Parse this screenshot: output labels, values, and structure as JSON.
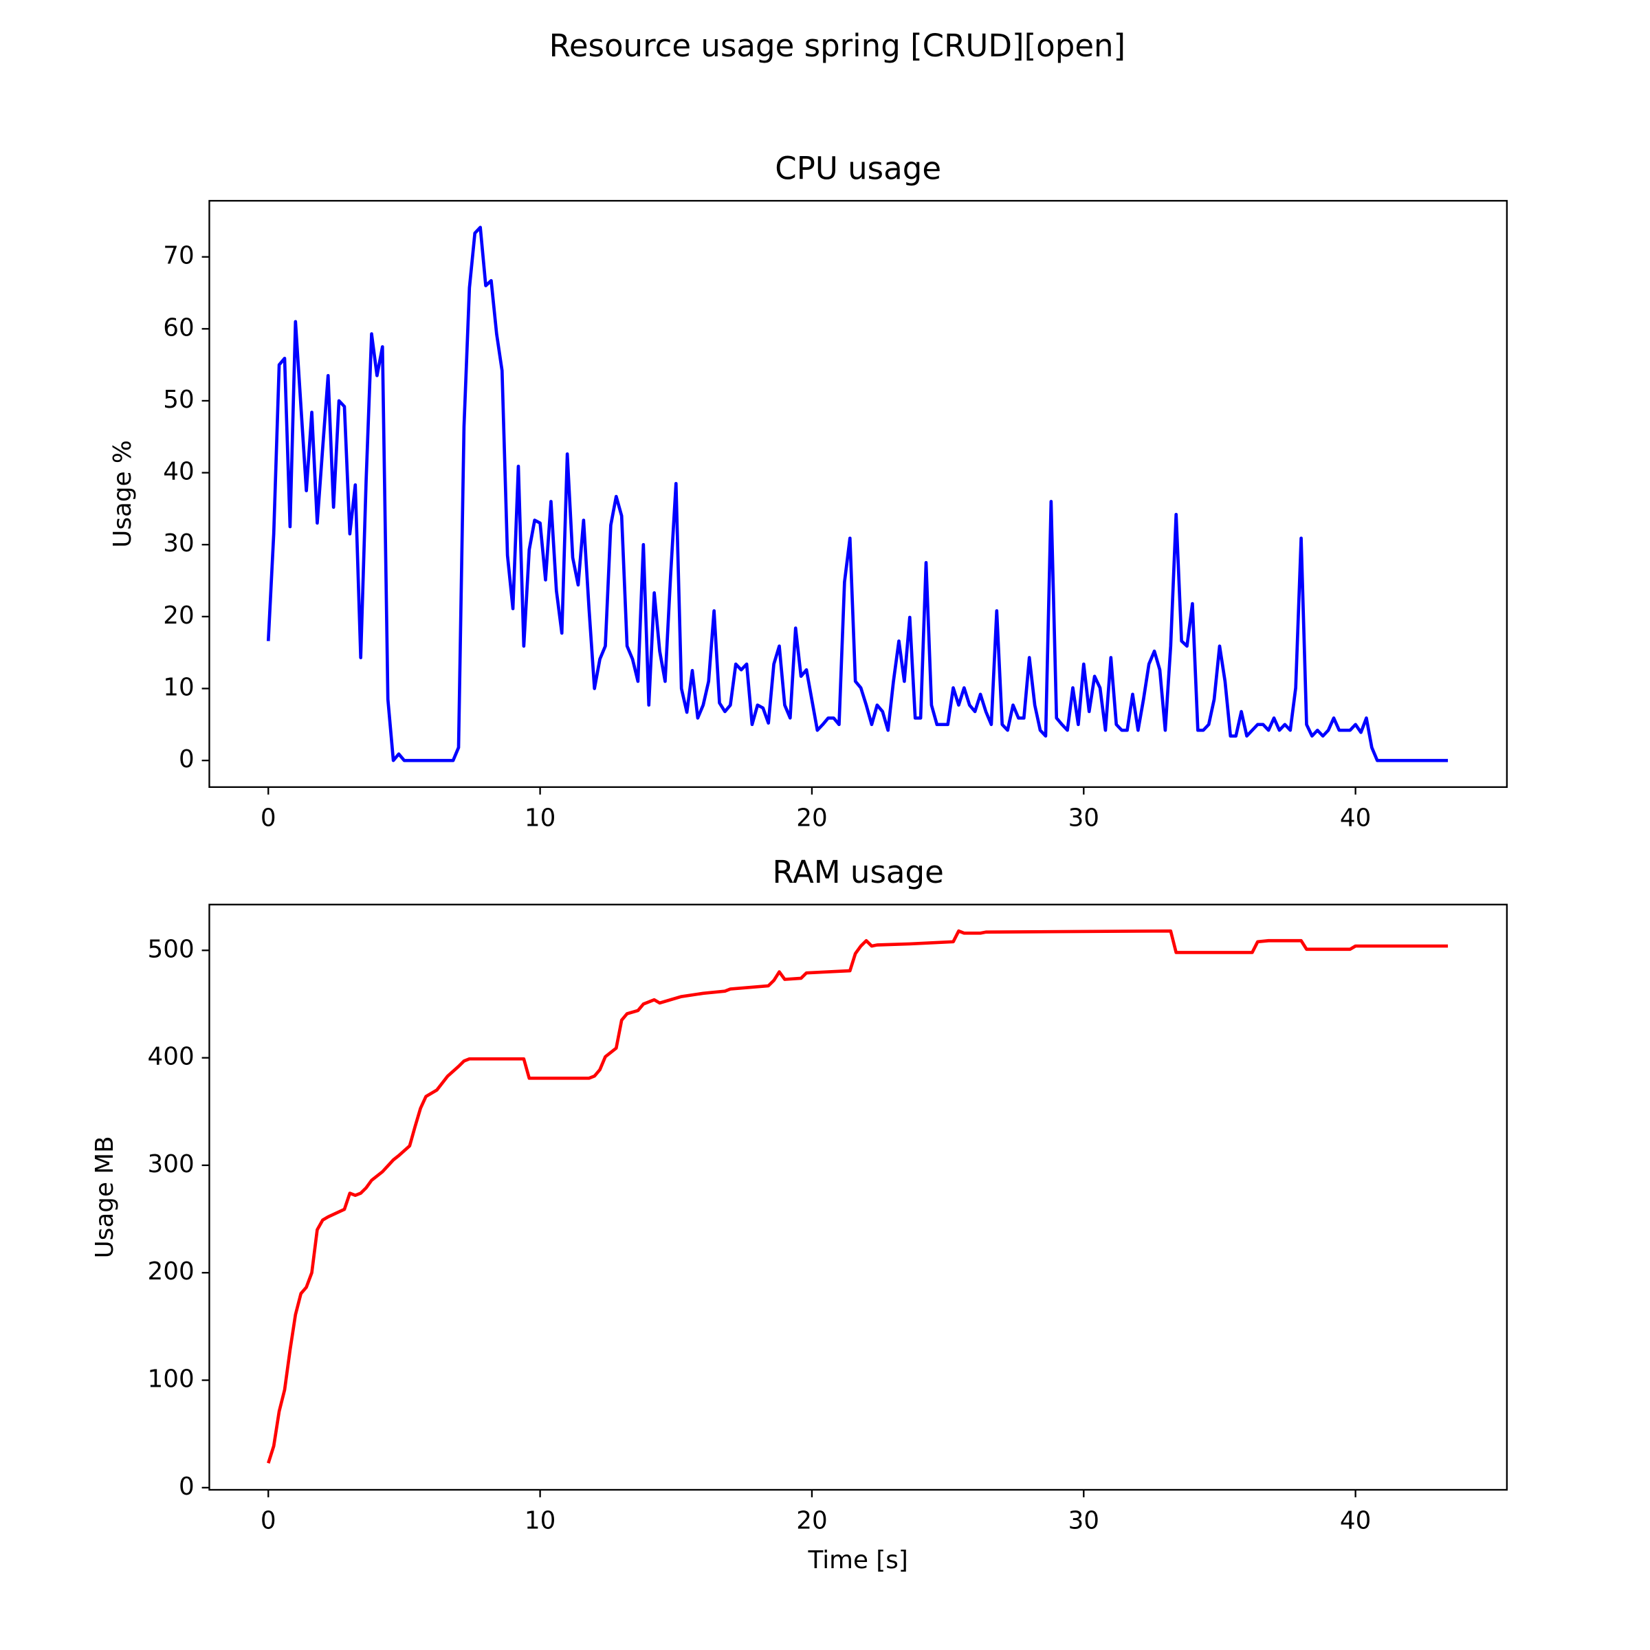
{
  "title": "Resource usage spring [CRUD][open]",
  "chart_data": [
    {
      "type": "line",
      "title": "CPU usage",
      "y_label": "Usage %",
      "x": [
        0,
        0.2,
        0.4,
        0.6,
        0.8,
        1.0,
        1.4,
        1.6,
        1.8,
        2.0,
        2.2,
        2.4,
        2.6,
        2.8,
        3.0,
        3.2,
        3.4,
        3.6,
        3.8,
        4.0,
        4.2,
        4.4,
        4.6,
        4.8,
        5.0,
        6.8,
        7.0,
        7.2,
        7.4,
        7.6,
        7.8,
        8.0,
        8.2,
        8.4,
        8.6,
        8.8,
        9.0,
        9.2,
        9.4,
        9.6,
        9.8,
        10.0,
        10.2,
        10.4,
        10.6,
        10.8,
        11.0,
        11.2,
        11.4,
        11.6,
        11.8,
        12.0,
        12.2,
        12.4,
        12.6,
        12.8,
        13.0,
        13.2,
        13.4,
        13.6,
        13.8,
        14.0,
        14.2,
        14.4,
        14.6,
        14.8,
        15.0,
        15.2,
        15.4,
        15.6,
        15.8,
        16.0,
        16.2,
        16.4,
        16.6,
        16.8,
        17.0,
        17.2,
        17.4,
        17.6,
        17.8,
        18.0,
        18.2,
        18.4,
        18.6,
        18.8,
        19.0,
        19.2,
        19.4,
        19.6,
        19.8,
        20.2,
        20.4,
        20.6,
        20.8,
        21.0,
        21.2,
        21.4,
        21.6,
        21.8,
        22.0,
        22.2,
        22.4,
        22.6,
        22.8,
        23.0,
        23.2,
        23.4,
        23.6,
        23.8,
        24.0,
        24.2,
        24.4,
        24.6,
        25.0,
        25.2,
        25.4,
        25.6,
        25.8,
        26.0,
        26.2,
        26.4,
        26.6,
        26.8,
        27.0,
        27.2,
        27.4,
        27.6,
        27.8,
        28.0,
        28.2,
        28.4,
        28.6,
        28.8,
        29.0,
        29.2,
        29.4,
        29.6,
        29.8,
        30.0,
        30.2,
        30.4,
        30.6,
        30.8,
        31.0,
        31.2,
        31.4,
        31.6,
        31.8,
        32.0,
        32.2,
        32.4,
        32.6,
        32.8,
        33.0,
        33.2,
        33.4,
        33.6,
        33.8,
        34.0,
        34.2,
        34.4,
        34.6,
        34.8,
        35.0,
        35.2,
        35.4,
        35.6,
        35.8,
        36.0,
        36.2,
        36.4,
        36.6,
        36.8,
        37.0,
        37.2,
        37.4,
        37.6,
        37.8,
        38.0,
        38.2,
        38.4,
        38.6,
        38.8,
        39.0,
        39.2,
        39.4,
        39.8,
        40.0,
        40.2,
        40.4,
        40.6,
        40.8,
        43.4
      ],
      "series": [
        {
          "color": "#0000ff",
          "values": [
            16.6,
            31.5,
            55,
            55.9,
            32.5,
            61,
            37.5,
            48.4,
            33,
            43.4,
            53.5,
            35.2,
            50,
            49.2,
            31.5,
            38.3,
            14.3,
            39,
            59.3,
            53.5,
            57.5,
            8.5,
            0,
            0.9,
            0,
            0,
            1.8,
            46.4,
            65.7,
            73.3,
            74.1,
            66,
            66.7,
            59.3,
            54.2,
            28.5,
            21.1,
            40.9,
            15.9,
            29.3,
            33.4,
            33,
            25.1,
            36,
            23.6,
            17.7,
            42.6,
            28.2,
            24.4,
            33.4,
            21.1,
            10,
            14.1,
            15.9,
            32.7,
            36.7,
            34,
            15.9,
            14.1,
            11,
            30,
            7.7,
            23.3,
            15.2,
            11,
            25.6,
            38.5,
            10,
            6.7,
            12.5,
            5.9,
            7.7,
            11,
            20.8,
            8,
            6.8,
            7.7,
            13.4,
            12.6,
            13.4,
            5,
            7.7,
            7.3,
            5.2,
            13.4,
            15.9,
            7.7,
            5.9,
            18.4,
            11.7,
            12.6,
            4.2,
            5,
            5.9,
            5.9,
            5,
            24.8,
            30.9,
            11,
            10.1,
            7.7,
            5,
            7.7,
            6.8,
            4.2,
            11,
            16.6,
            11,
            19.9,
            5.9,
            5.9,
            27.5,
            7.7,
            5,
            5,
            10.1,
            7.7,
            10.1,
            7.7,
            6.8,
            9.2,
            6.8,
            5,
            20.8,
            5,
            4.2,
            7.7,
            5.9,
            5.9,
            14.3,
            7.7,
            4.2,
            3.4,
            36,
            5.9,
            5,
            4.2,
            10.1,
            5,
            13.4,
            6.8,
            11.7,
            10.1,
            4.2,
            14.3,
            5,
            4.2,
            4.2,
            9.2,
            4.2,
            8.5,
            13.4,
            15.2,
            12.6,
            4.2,
            15.9,
            34.2,
            16.6,
            15.9,
            21.8,
            4.2,
            4.2,
            5,
            8.5,
            15.9,
            11,
            3.4,
            3.4,
            6.8,
            3.4,
            4.2,
            5,
            5,
            4.2,
            5.9,
            4.2,
            5,
            4.2,
            10.1,
            30.9,
            5,
            3.4,
            4.2,
            3.4,
            4.2,
            5.9,
            4.2,
            4.2,
            5,
            3.9,
            5.9,
            1.8,
            0,
            0
          ]
        }
      ],
      "xlim": [
        -2.17,
        45.57
      ],
      "ylim": [
        -3.7,
        77.8
      ],
      "xticks": [
        0,
        10,
        20,
        30,
        40
      ],
      "yticks": [
        0,
        10,
        20,
        30,
        40,
        50,
        60,
        70
      ]
    },
    {
      "type": "line",
      "title": "RAM usage",
      "y_label": "Usage MB",
      "x_label": "Time [s]",
      "x": [
        0,
        0.2,
        0.4,
        0.6,
        0.8,
        1.0,
        1.2,
        1.4,
        1.6,
        1.8,
        2.0,
        2.2,
        2.8,
        3.0,
        3.2,
        3.4,
        3.6,
        3.8,
        4.2,
        4.6,
        4.8,
        5.2,
        5.4,
        5.6,
        5.8,
        6.2,
        6.6,
        7.0,
        7.2,
        7.4,
        9.4,
        9.6,
        11.8,
        12.0,
        12.2,
        12.4,
        12.6,
        12.8,
        13.0,
        13.2,
        13.6,
        13.8,
        14.2,
        14.4,
        15.2,
        16.0,
        16.8,
        17.0,
        18.4,
        18.6,
        18.8,
        19.0,
        19.6,
        19.8,
        20.6,
        21.4,
        21.6,
        21.8,
        22.0,
        22.2,
        22.4,
        23.6,
        25.2,
        25.4,
        25.6,
        26.2,
        26.4,
        33.2,
        33.4,
        36.2,
        36.4,
        36.8,
        38.0,
        38.2,
        39.8,
        40.0,
        43.4
      ],
      "series": [
        {
          "color": "#ff0000",
          "values": [
            22.8,
            38.7,
            71,
            91,
            128,
            161,
            180.6,
            186.5,
            200,
            240,
            249,
            252,
            259,
            274,
            272,
            274,
            279,
            286,
            294,
            305,
            309,
            318,
            336,
            353,
            364,
            370,
            383,
            392,
            397,
            399,
            399,
            381,
            381,
            383,
            389,
            401,
            405,
            409,
            435,
            441,
            444,
            450,
            454,
            451,
            457,
            460,
            462,
            464,
            467,
            472,
            480,
            473,
            474,
            479,
            480,
            481,
            497,
            504,
            509,
            504,
            505,
            506,
            508,
            518,
            516,
            516,
            517,
            518,
            498,
            498,
            508,
            509,
            509,
            501,
            501,
            504,
            504
          ]
        }
      ],
      "xlim": [
        -2.17,
        45.57
      ],
      "ylim": [
        -2,
        542.6
      ],
      "xticks": [
        0,
        10,
        20,
        30,
        40
      ],
      "yticks": [
        0,
        100,
        200,
        300,
        400,
        500
      ]
    }
  ]
}
